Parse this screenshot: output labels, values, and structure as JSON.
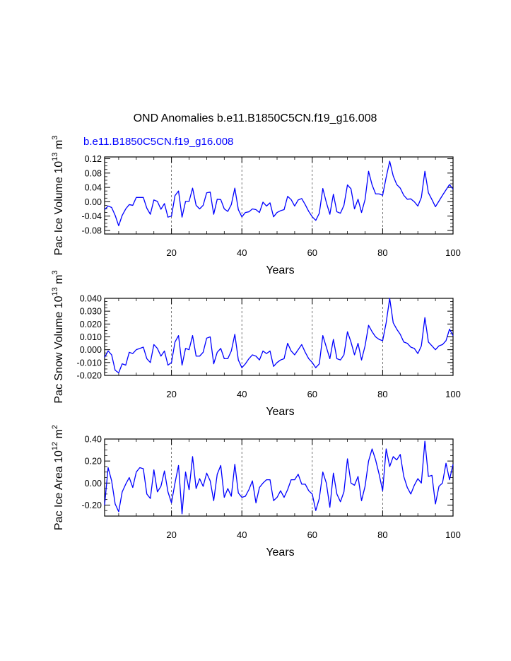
{
  "figure": {
    "title": "OND Anomalies b.e11.B1850C5CN.f19_g16.008",
    "subtitle": "b.e11.B1850C5CN.f19_g16.008",
    "subtitle_color": "#0000ff",
    "line_color": "#0000ff"
  },
  "chart_data": [
    {
      "type": "line",
      "ylabel": "Pac Ice Volume 10",
      "ylabel_sup": "13",
      "ylabel_unit": "m",
      "ylabel_unit_sup": "3",
      "xlabel": "Years",
      "xlim": [
        1,
        100
      ],
      "ylim": [
        -0.09,
        0.125
      ],
      "xticks": [
        20,
        40,
        60,
        80,
        100
      ],
      "yticks": [
        -0.08,
        -0.04,
        0.0,
        0.04,
        0.08,
        0.12
      ],
      "ytick_labels": [
        "-0.08",
        "-0.04",
        "0.00",
        "0.04",
        "0.08",
        "0.12"
      ],
      "vlines": [
        20,
        40,
        60,
        80
      ],
      "x": [
        1,
        2,
        3,
        4,
        5,
        6,
        7,
        8,
        9,
        10,
        11,
        12,
        13,
        14,
        15,
        16,
        17,
        18,
        19,
        20,
        21,
        22,
        23,
        24,
        25,
        26,
        27,
        28,
        29,
        30,
        31,
        32,
        33,
        34,
        35,
        36,
        37,
        38,
        39,
        40,
        41,
        42,
        43,
        44,
        45,
        46,
        47,
        48,
        49,
        50,
        51,
        52,
        53,
        54,
        55,
        56,
        57,
        58,
        59,
        60,
        61,
        62,
        63,
        64,
        65,
        66,
        67,
        68,
        69,
        70,
        71,
        72,
        73,
        74,
        75,
        76,
        77,
        78,
        79,
        80,
        81,
        82,
        83,
        84,
        85,
        86,
        87,
        88,
        89,
        90,
        91,
        92,
        93,
        94,
        95,
        96,
        97,
        98,
        99,
        100
      ],
      "values": [
        -0.022,
        -0.012,
        -0.016,
        -0.038,
        -0.067,
        -0.038,
        -0.02,
        -0.008,
        -0.01,
        0.012,
        0.012,
        0.012,
        -0.018,
        -0.035,
        0.005,
        0.001,
        -0.021,
        -0.005,
        -0.043,
        -0.04,
        0.017,
        0.03,
        -0.043,
        0.001,
        0.001,
        0.038,
        -0.01,
        -0.02,
        -0.01,
        0.025,
        0.027,
        -0.035,
        0.007,
        0.006,
        -0.02,
        -0.027,
        -0.008,
        0.038,
        -0.022,
        -0.042,
        -0.03,
        -0.028,
        -0.02,
        -0.022,
        -0.03,
        -0.001,
        -0.012,
        -0.003,
        -0.042,
        -0.03,
        -0.025,
        -0.022,
        0.015,
        0.006,
        -0.012,
        0.005,
        0.009,
        -0.008,
        -0.027,
        -0.042,
        -0.052,
        -0.032,
        0.037,
        -0.002,
        -0.035,
        0.021,
        -0.028,
        -0.032,
        -0.01,
        0.047,
        0.036,
        -0.02,
        0.007,
        -0.03,
        0.006,
        0.085,
        0.047,
        0.022,
        0.022,
        0.018,
        0.068,
        0.113,
        0.072,
        0.048,
        0.038,
        0.018,
        0.007,
        0.008,
        0.0,
        -0.012,
        0.012,
        0.085,
        0.025,
        0.006,
        -0.014,
        0.002,
        0.018,
        0.033,
        0.048,
        0.035
      ]
    },
    {
      "type": "line",
      "ylabel": "Pac Snow Volume 10",
      "ylabel_sup": "13",
      "ylabel_unit": "m",
      "ylabel_unit_sup": "3",
      "xlabel": "Years",
      "xlim": [
        1,
        100
      ],
      "ylim": [
        -0.02,
        0.04
      ],
      "xticks": [
        20,
        40,
        60,
        80,
        100
      ],
      "yticks": [
        -0.02,
        -0.01,
        0.0,
        0.01,
        0.02,
        0.03,
        0.04
      ],
      "ytick_labels": [
        "-0.020",
        "-0.010",
        "0.000",
        "0.010",
        "0.020",
        "0.030",
        "0.040"
      ],
      "vlines": [
        20,
        40,
        60,
        80
      ],
      "x": [
        1,
        2,
        3,
        4,
        5,
        6,
        7,
        8,
        9,
        10,
        11,
        12,
        13,
        14,
        15,
        16,
        17,
        18,
        19,
        20,
        21,
        22,
        23,
        24,
        25,
        26,
        27,
        28,
        29,
        30,
        31,
        32,
        33,
        34,
        35,
        36,
        37,
        38,
        39,
        40,
        41,
        42,
        43,
        44,
        45,
        46,
        47,
        48,
        49,
        50,
        51,
        52,
        53,
        54,
        55,
        56,
        57,
        58,
        59,
        60,
        61,
        62,
        63,
        64,
        65,
        66,
        67,
        68,
        69,
        70,
        71,
        72,
        73,
        74,
        75,
        76,
        77,
        78,
        79,
        80,
        81,
        82,
        83,
        84,
        85,
        86,
        87,
        88,
        89,
        90,
        91,
        92,
        93,
        94,
        95,
        96,
        97,
        98,
        99,
        100
      ],
      "values": [
        -0.006,
        -0.001,
        -0.004,
        -0.016,
        -0.018,
        -0.011,
        -0.012,
        -0.002,
        -0.003,
        0.0,
        0.001,
        0.002,
        -0.007,
        -0.01,
        0.004,
        0.001,
        -0.005,
        -0.001,
        -0.012,
        -0.01,
        0.006,
        0.011,
        -0.012,
        0.001,
        0.0,
        0.011,
        -0.005,
        -0.005,
        -0.002,
        0.009,
        0.01,
        -0.011,
        -0.002,
        0.001,
        -0.007,
        -0.007,
        -0.001,
        0.012,
        -0.008,
        -0.014,
        -0.011,
        -0.007,
        -0.004,
        -0.005,
        -0.008,
        -0.001,
        -0.003,
        -0.001,
        -0.013,
        -0.01,
        -0.008,
        -0.007,
        0.005,
        -0.001,
        -0.004,
        0.0,
        0.004,
        -0.002,
        -0.007,
        -0.01,
        -0.014,
        -0.011,
        0.011,
        0.002,
        -0.007,
        0.008,
        -0.007,
        -0.008,
        -0.004,
        0.014,
        0.006,
        -0.004,
        0.005,
        -0.008,
        0.003,
        0.019,
        0.014,
        0.01,
        0.008,
        0.007,
        0.021,
        0.04,
        0.021,
        0.016,
        0.012,
        0.006,
        0.005,
        0.002,
        0.001,
        -0.003,
        0.003,
        0.025,
        0.006,
        0.003,
        0.0,
        0.003,
        0.004,
        0.007,
        0.016,
        0.011
      ]
    },
    {
      "type": "line",
      "ylabel": "Pac Ice Area 10",
      "ylabel_sup": "12",
      "ylabel_unit": "m",
      "ylabel_unit_sup": "2",
      "xlabel": "Years",
      "xlim": [
        1,
        100
      ],
      "ylim": [
        -0.3,
        0.4
      ],
      "xticks": [
        20,
        40,
        60,
        80,
        100
      ],
      "yticks": [
        -0.2,
        0.0,
        0.2,
        0.4
      ],
      "ytick_labels": [
        "-0.20",
        "0.00",
        "0.20",
        "0.40"
      ],
      "vlines": [
        20,
        40,
        60,
        80
      ],
      "x": [
        1,
        2,
        3,
        4,
        5,
        6,
        7,
        8,
        9,
        10,
        11,
        12,
        13,
        14,
        15,
        16,
        17,
        18,
        19,
        20,
        21,
        22,
        23,
        24,
        25,
        26,
        27,
        28,
        29,
        30,
        31,
        32,
        33,
        34,
        35,
        36,
        37,
        38,
        39,
        40,
        41,
        42,
        43,
        44,
        45,
        46,
        47,
        48,
        49,
        50,
        51,
        52,
        53,
        54,
        55,
        56,
        57,
        58,
        59,
        60,
        61,
        62,
        63,
        64,
        65,
        66,
        67,
        68,
        69,
        70,
        71,
        72,
        73,
        74,
        75,
        76,
        77,
        78,
        79,
        80,
        81,
        82,
        83,
        84,
        85,
        86,
        87,
        88,
        89,
        90,
        91,
        92,
        93,
        94,
        95,
        96,
        97,
        98,
        99,
        100
      ],
      "values": [
        -0.2,
        0.14,
        0.02,
        -0.19,
        -0.26,
        -0.08,
        -0.01,
        0.05,
        -0.04,
        0.1,
        0.14,
        0.13,
        -0.1,
        -0.14,
        0.12,
        -0.08,
        -0.03,
        0.11,
        -0.08,
        -0.18,
        0.0,
        0.16,
        -0.28,
        0.1,
        -0.06,
        0.24,
        -0.05,
        0.04,
        -0.03,
        0.09,
        0.02,
        -0.16,
        0.08,
        0.16,
        -0.13,
        -0.05,
        -0.12,
        0.17,
        -0.09,
        -0.13,
        -0.12,
        -0.06,
        0.02,
        -0.18,
        -0.04,
        0.0,
        0.03,
        0.03,
        -0.16,
        -0.13,
        -0.07,
        -0.13,
        -0.06,
        0.03,
        0.03,
        0.08,
        -0.01,
        -0.01,
        -0.07,
        -0.1,
        -0.25,
        -0.14,
        0.1,
        0.0,
        -0.22,
        0.09,
        -0.1,
        -0.17,
        -0.08,
        0.22,
        0.0,
        -0.02,
        0.06,
        -0.16,
        -0.03,
        0.2,
        0.31,
        0.21,
        0.08,
        -0.07,
        0.31,
        0.15,
        0.24,
        0.21,
        0.26,
        0.06,
        -0.04,
        -0.1,
        -0.02,
        0.04,
        0.0,
        0.38,
        0.06,
        0.07,
        -0.19,
        -0.03,
        0.0,
        0.18,
        0.03,
        0.17
      ]
    }
  ]
}
